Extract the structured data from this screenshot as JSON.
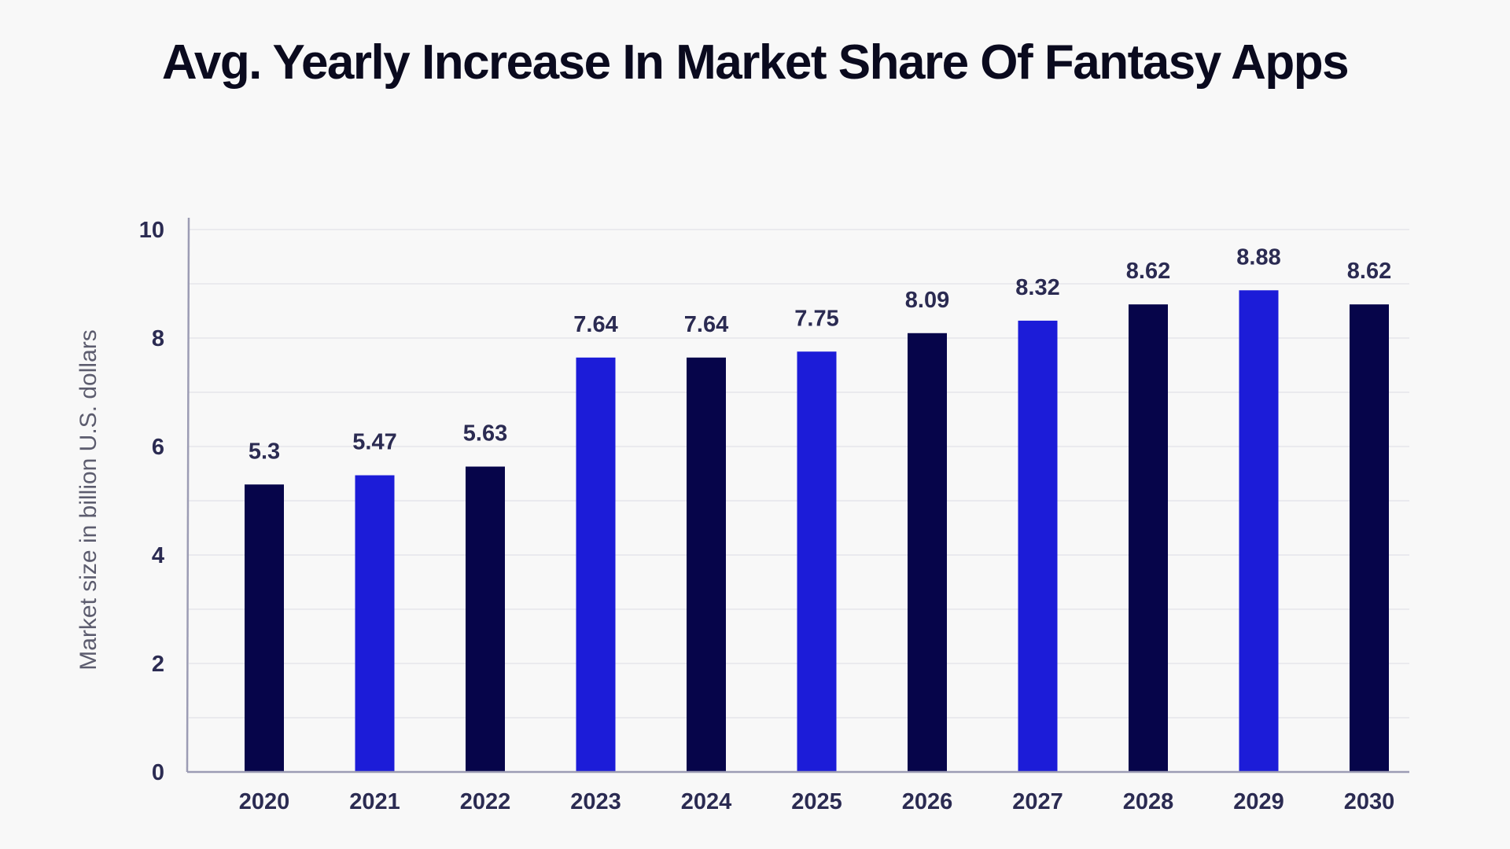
{
  "chart_data": {
    "type": "bar",
    "title": "Avg. Yearly Increase In Market Share Of Fantasy Apps",
    "ylabel": "Market size in billion U.S. dollars",
    "xlabel": "",
    "ylim": [
      0,
      10
    ],
    "yticks": [
      "0",
      "2",
      "4",
      "6",
      "8",
      "10"
    ],
    "grid": true,
    "categories": [
      "2020",
      "2021",
      "2022",
      "2023",
      "2024",
      "2025",
      "2026",
      "2027",
      "2028",
      "2029",
      "2030"
    ],
    "values": [
      5.3,
      5.47,
      5.63,
      7.64,
      7.64,
      7.75,
      8.09,
      8.32,
      8.62,
      8.88,
      8.62
    ],
    "value_labels": [
      "5.3",
      "5.47",
      "5.63",
      "7.64",
      "7.64",
      "7.75",
      "8.09",
      "8.32",
      "8.62",
      "8.88",
      "8.62"
    ],
    "colors": {
      "dark": "#06054a",
      "blue": "#1c1cd8",
      "grid": "#e6e6ea",
      "axis": "#9c9cb4"
    },
    "bar_color_pattern": [
      "dark",
      "blue",
      "dark",
      "blue",
      "dark",
      "blue",
      "dark",
      "blue",
      "dark",
      "blue",
      "dark"
    ]
  }
}
